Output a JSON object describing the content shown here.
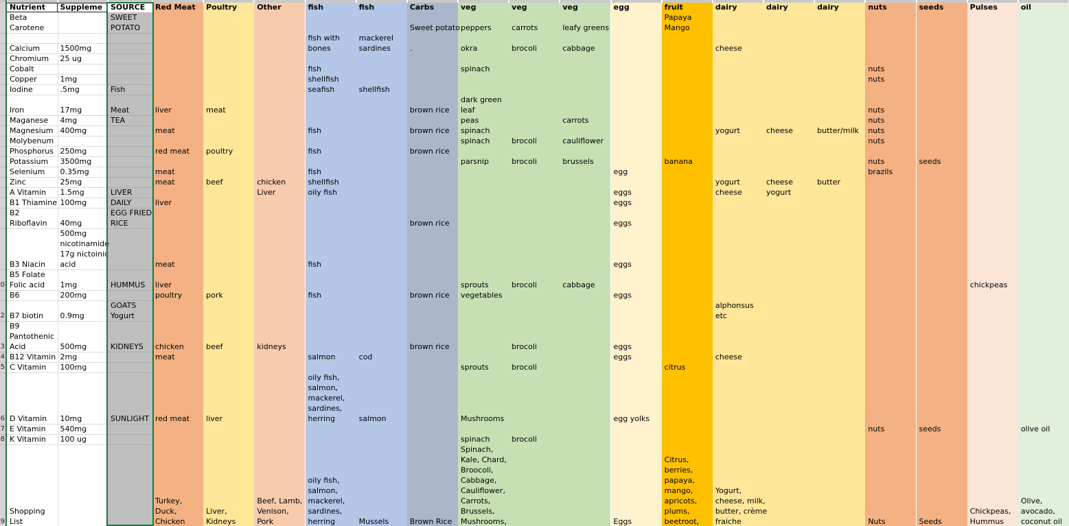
{
  "app": {
    "type": "spreadsheet",
    "selected_column": "SOURCE",
    "selection_color": "#217346"
  },
  "sheet": {
    "columns": [
      {
        "header": "Nutrient",
        "bg": "#FFFFFF"
      },
      {
        "header": "Suppleme",
        "bg": "#FFFFFF"
      },
      {
        "header": "SOURCE",
        "bg": "#BFBFBF",
        "header_bg": "#FFFFFF",
        "selected": true
      },
      {
        "header": "Red Meat",
        "bg": "#F4B183"
      },
      {
        "header": "Poultry",
        "bg": "#FFE699"
      },
      {
        "header": "Other",
        "bg": "#F8CBAD"
      },
      {
        "header": "fish",
        "bg": "#B4C7E7"
      },
      {
        "header": "fish",
        "bg": "#B4C7E7"
      },
      {
        "header": "Carbs",
        "bg": "#AAB7CB"
      },
      {
        "header": "veg",
        "bg": "#C6E0B4"
      },
      {
        "header": "veg",
        "bg": "#C6E0B4"
      },
      {
        "header": "veg",
        "bg": "#C6E0B4"
      },
      {
        "header": "egg",
        "bg": "#FFF2CC"
      },
      {
        "header": "fruit",
        "bg": "#FFC000"
      },
      {
        "header": "dairy",
        "bg": "#FFE699"
      },
      {
        "header": "dairy",
        "bg": "#FFE699"
      },
      {
        "header": "dairy",
        "bg": "#FFE699"
      },
      {
        "header": "nuts",
        "bg": "#F4B183"
      },
      {
        "header": "seeds",
        "bg": "#F4B183"
      },
      {
        "header": "Pulses",
        "bg": "#FBE5D6"
      },
      {
        "header": "oil",
        "bg": "#E2EFDA"
      }
    ],
    "row_numbers": [
      {
        "r": 28,
        "n": "0"
      },
      {
        "r": 31,
        "n": "2"
      },
      {
        "r": 34,
        "n": "3"
      },
      {
        "r": 35,
        "n": "4"
      },
      {
        "r": 36,
        "n": "5"
      },
      {
        "r": 41,
        "n": "6"
      },
      {
        "r": 42,
        "n": "7"
      },
      {
        "r": 43,
        "n": "8"
      },
      {
        "r": 51,
        "n": "9"
      }
    ],
    "cells": [
      [
        0,
        2,
        "Beta"
      ],
      [
        0,
        3,
        "Carotene"
      ],
      [
        0,
        5,
        "Calcium"
      ],
      [
        0,
        6,
        "Chromium"
      ],
      [
        0,
        7,
        "Cobalt"
      ],
      [
        0,
        8,
        "Copper"
      ],
      [
        0,
        9,
        "Iodine"
      ],
      [
        0,
        11,
        "Iron"
      ],
      [
        0,
        12,
        "Maganese"
      ],
      [
        0,
        13,
        "Magnesium"
      ],
      [
        0,
        14,
        "Molybenum"
      ],
      [
        0,
        15,
        "Phosphorus"
      ],
      [
        0,
        16,
        "Potassium"
      ],
      [
        0,
        17,
        "Selenium"
      ],
      [
        0,
        18,
        "Zinc"
      ],
      [
        0,
        19,
        "A Vitamin"
      ],
      [
        0,
        20,
        "B1 Thiamine"
      ],
      [
        0,
        21,
        "B2"
      ],
      [
        0,
        22,
        "Riboflavin"
      ],
      [
        0,
        26,
        "B3 Niacin"
      ],
      [
        0,
        27,
        "B5 Folate"
      ],
      [
        0,
        28,
        "Folic acid"
      ],
      [
        0,
        29,
        "B6"
      ],
      [
        0,
        31,
        "B7 biotin"
      ],
      [
        0,
        32,
        "B9"
      ],
      [
        0,
        33,
        "Pantothenic"
      ],
      [
        0,
        34,
        "Acid"
      ],
      [
        0,
        35,
        "B12 Vitamin"
      ],
      [
        0,
        36,
        "C Vitamin"
      ],
      [
        0,
        41,
        "D Vitamin"
      ],
      [
        0,
        42,
        "E Vitamin"
      ],
      [
        0,
        43,
        "K Vitamin"
      ],
      [
        0,
        50,
        "Shopping"
      ],
      [
        0,
        51,
        "List"
      ],
      [
        1,
        5,
        "1500mg"
      ],
      [
        1,
        6,
        "25 ug"
      ],
      [
        1,
        8,
        "1mg"
      ],
      [
        1,
        9,
        ".5mg"
      ],
      [
        1,
        11,
        "17mg"
      ],
      [
        1,
        12,
        "4mg"
      ],
      [
        1,
        13,
        "400mg"
      ],
      [
        1,
        15,
        "250mg"
      ],
      [
        1,
        16,
        "3500mg"
      ],
      [
        1,
        17,
        "0.35mg"
      ],
      [
        1,
        18,
        "25mg"
      ],
      [
        1,
        19,
        "1.5mg"
      ],
      [
        1,
        20,
        "100mg"
      ],
      [
        1,
        22,
        "40mg"
      ],
      [
        1,
        23,
        "500mg"
      ],
      [
        1,
        24,
        "nicotinamide"
      ],
      [
        1,
        25,
        "17g nictoinic"
      ],
      [
        1,
        26,
        "acid"
      ],
      [
        1,
        28,
        "1mg"
      ],
      [
        1,
        29,
        "200mg"
      ],
      [
        1,
        31,
        "0.9mg"
      ],
      [
        1,
        34,
        "500mg"
      ],
      [
        1,
        35,
        "2mg"
      ],
      [
        1,
        36,
        "100mg"
      ],
      [
        1,
        41,
        "10mg"
      ],
      [
        1,
        42,
        "540mg"
      ],
      [
        1,
        43,
        "100 ug"
      ],
      [
        2,
        2,
        "SWEET"
      ],
      [
        2,
        3,
        "POTATO"
      ],
      [
        2,
        9,
        "Fish"
      ],
      [
        2,
        11,
        "Meat"
      ],
      [
        2,
        12,
        "TEA"
      ],
      [
        2,
        19,
        "LIVER"
      ],
      [
        2,
        20,
        "DAILY"
      ],
      [
        2,
        21,
        "EGG FRIED"
      ],
      [
        2,
        22,
        "RICE"
      ],
      [
        2,
        28,
        "HUMMUS"
      ],
      [
        2,
        30,
        "GOATS"
      ],
      [
        2,
        31,
        "Yogurt"
      ],
      [
        2,
        34,
        "KIDNEYS"
      ],
      [
        2,
        41,
        "SUNLIGHT"
      ],
      [
        3,
        11,
        "liver"
      ],
      [
        3,
        13,
        "meat"
      ],
      [
        3,
        15,
        "red meat"
      ],
      [
        3,
        17,
        "meat"
      ],
      [
        3,
        18,
        "meat"
      ],
      [
        3,
        20,
        "liver"
      ],
      [
        3,
        26,
        "meat"
      ],
      [
        3,
        28,
        "liver"
      ],
      [
        3,
        29,
        "poultry"
      ],
      [
        3,
        34,
        "chicken"
      ],
      [
        3,
        35,
        "meat"
      ],
      [
        3,
        41,
        "red meat"
      ],
      [
        3,
        49,
        "Turkey,"
      ],
      [
        3,
        50,
        "Duck,"
      ],
      [
        3,
        51,
        "Chicken"
      ],
      [
        4,
        11,
        "meat"
      ],
      [
        4,
        15,
        "poultry"
      ],
      [
        4,
        18,
        "beef"
      ],
      [
        4,
        29,
        "pork"
      ],
      [
        4,
        34,
        "beef"
      ],
      [
        4,
        41,
        "liver"
      ],
      [
        4,
        50,
        "Liver,"
      ],
      [
        4,
        51,
        "Kidneys"
      ],
      [
        5,
        18,
        "chicken"
      ],
      [
        5,
        19,
        "Liver"
      ],
      [
        5,
        34,
        "kidneys"
      ],
      [
        5,
        49,
        "Beef, Lamb,"
      ],
      [
        5,
        50,
        "Venison,"
      ],
      [
        5,
        51,
        "Pork"
      ],
      [
        6,
        4,
        "fish with"
      ],
      [
        6,
        5,
        "bones"
      ],
      [
        6,
        7,
        "fish"
      ],
      [
        6,
        8,
        "shellfish"
      ],
      [
        6,
        9,
        "seafish"
      ],
      [
        6,
        13,
        "fish"
      ],
      [
        6,
        15,
        "fish"
      ],
      [
        6,
        17,
        "fish"
      ],
      [
        6,
        18,
        "shellfish"
      ],
      [
        6,
        19,
        "oily fish"
      ],
      [
        6,
        26,
        "fish"
      ],
      [
        6,
        29,
        "fish"
      ],
      [
        6,
        35,
        "salmon"
      ],
      [
        6,
        37,
        "oily fish,"
      ],
      [
        6,
        38,
        "salmon,"
      ],
      [
        6,
        39,
        "mackerel,"
      ],
      [
        6,
        40,
        "sardines,"
      ],
      [
        6,
        41,
        "herring"
      ],
      [
        6,
        47,
        "oily fish,"
      ],
      [
        6,
        48,
        "salmon,"
      ],
      [
        6,
        49,
        "mackerel,"
      ],
      [
        6,
        50,
        "sardines,"
      ],
      [
        6,
        51,
        "herring"
      ],
      [
        7,
        4,
        "mackerel"
      ],
      [
        7,
        5,
        "sardines"
      ],
      [
        7,
        9,
        "shellfish"
      ],
      [
        7,
        35,
        "cod"
      ],
      [
        7,
        41,
        "salmon"
      ],
      [
        7,
        51,
        "Mussels"
      ],
      [
        8,
        3,
        "Sweet potato"
      ],
      [
        8,
        5,
        "."
      ],
      [
        8,
        11,
        "brown rice"
      ],
      [
        8,
        13,
        "brown rice"
      ],
      [
        8,
        15,
        "brown rice"
      ],
      [
        8,
        22,
        "brown rice"
      ],
      [
        8,
        29,
        "brown rice"
      ],
      [
        8,
        34,
        "brown rice"
      ],
      [
        8,
        51,
        "Brown Rice"
      ],
      [
        9,
        3,
        "peppers"
      ],
      [
        9,
        5,
        "okra"
      ],
      [
        9,
        7,
        "spinach"
      ],
      [
        9,
        10,
        "dark green"
      ],
      [
        9,
        11,
        "leaf"
      ],
      [
        9,
        12,
        "peas"
      ],
      [
        9,
        13,
        "spinach"
      ],
      [
        9,
        14,
        "spinach"
      ],
      [
        9,
        16,
        "parsnip"
      ],
      [
        9,
        28,
        "sprouts"
      ],
      [
        9,
        29,
        "vegetables"
      ],
      [
        9,
        36,
        "sprouts"
      ],
      [
        9,
        41,
        "Mushrooms"
      ],
      [
        9,
        43,
        "spinach"
      ],
      [
        9,
        44,
        "Spinach,"
      ],
      [
        9,
        45,
        "Kale, Chard,"
      ],
      [
        9,
        46,
        "Broocoli,"
      ],
      [
        9,
        47,
        "Cabbage,"
      ],
      [
        9,
        48,
        "Cauliflower,"
      ],
      [
        9,
        49,
        "Carrots,"
      ],
      [
        9,
        50,
        "Brussels,"
      ],
      [
        9,
        51,
        "Mushrooms,"
      ],
      [
        10,
        3,
        "carrots"
      ],
      [
        10,
        5,
        "brocoli"
      ],
      [
        10,
        14,
        "brocoli"
      ],
      [
        10,
        16,
        "brocoli"
      ],
      [
        10,
        28,
        "brocoli"
      ],
      [
        10,
        34,
        "brocoli"
      ],
      [
        10,
        36,
        "brocoli"
      ],
      [
        10,
        43,
        "brocoli"
      ],
      [
        11,
        3,
        "leafy greens"
      ],
      [
        11,
        5,
        "cabbage"
      ],
      [
        11,
        12,
        "carrots"
      ],
      [
        11,
        14,
        "cauliflower"
      ],
      [
        11,
        16,
        "brussels"
      ],
      [
        11,
        28,
        "cabbage"
      ],
      [
        12,
        17,
        "egg"
      ],
      [
        12,
        19,
        "eggs"
      ],
      [
        12,
        20,
        "eggs"
      ],
      [
        12,
        22,
        "eggs"
      ],
      [
        12,
        26,
        "eggs"
      ],
      [
        12,
        29,
        "eggs"
      ],
      [
        12,
        34,
        "eggs"
      ],
      [
        12,
        35,
        "eggs"
      ],
      [
        12,
        41,
        "egg yolks"
      ],
      [
        12,
        51,
        "Eggs"
      ],
      [
        13,
        2,
        "Papaya"
      ],
      [
        13,
        3,
        "Mango"
      ],
      [
        13,
        16,
        "banana"
      ],
      [
        13,
        36,
        "citrus"
      ],
      [
        13,
        45,
        "Citrus,"
      ],
      [
        13,
        46,
        "berries,"
      ],
      [
        13,
        47,
        "papaya,"
      ],
      [
        13,
        48,
        "mango,"
      ],
      [
        13,
        49,
        "apricots,"
      ],
      [
        13,
        50,
        "plums,"
      ],
      [
        13,
        51,
        "beetroot,"
      ],
      [
        14,
        5,
        "cheese"
      ],
      [
        14,
        13,
        "yogurt"
      ],
      [
        14,
        18,
        "yogurt"
      ],
      [
        14,
        19,
        "cheese"
      ],
      [
        14,
        30,
        "alphonsus"
      ],
      [
        14,
        31,
        "etc"
      ],
      [
        14,
        35,
        "cheese"
      ],
      [
        14,
        48,
        "Yogurt,"
      ],
      [
        14,
        49,
        "cheese, milk,"
      ],
      [
        14,
        50,
        "butter, crème"
      ],
      [
        14,
        51,
        "fraiche"
      ],
      [
        15,
        13,
        "cheese"
      ],
      [
        15,
        18,
        "cheese"
      ],
      [
        15,
        19,
        "yogurt"
      ],
      [
        16,
        13,
        "butter/milk"
      ],
      [
        16,
        18,
        "butter"
      ],
      [
        17,
        7,
        "nuts"
      ],
      [
        17,
        8,
        "nuts"
      ],
      [
        17,
        11,
        "nuts"
      ],
      [
        17,
        12,
        "nuts"
      ],
      [
        17,
        13,
        "nuts"
      ],
      [
        17,
        14,
        "nuts"
      ],
      [
        17,
        16,
        "nuts"
      ],
      [
        17,
        17,
        "brazils"
      ],
      [
        17,
        42,
        "nuts"
      ],
      [
        17,
        51,
        "Nuts"
      ],
      [
        18,
        16,
        "seeds"
      ],
      [
        18,
        42,
        "seeds"
      ],
      [
        18,
        51,
        "Seeds"
      ],
      [
        19,
        28,
        "chickpeas"
      ],
      [
        19,
        50,
        "Chickpeas,"
      ],
      [
        19,
        51,
        "Hummus"
      ],
      [
        20,
        42,
        "olive oil"
      ],
      [
        20,
        49,
        "Olive,"
      ],
      [
        20,
        50,
        "avocado,"
      ],
      [
        20,
        51,
        "coconut oil"
      ]
    ]
  }
}
